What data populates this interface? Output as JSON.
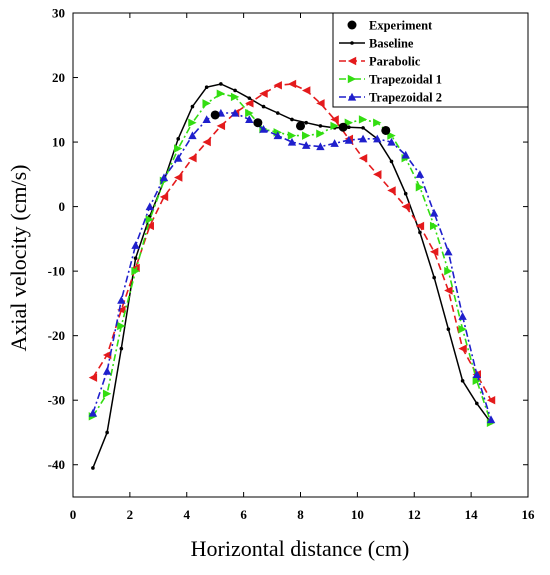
{
  "chart_data": {
    "type": "line",
    "title": "",
    "xlabel": "Horizontal distance (cm)",
    "ylabel": "Axial velocity (cm/s)",
    "xlim": [
      0,
      16
    ],
    "ylim": [
      -45,
      30
    ],
    "xticks": [
      0,
      2,
      4,
      6,
      8,
      10,
      12,
      14,
      16
    ],
    "yticks": [
      -40,
      -30,
      -20,
      -10,
      0,
      10,
      20,
      30
    ],
    "grid": false,
    "legend_position": "top-right",
    "series": [
      {
        "name": "Experiment",
        "color": "#000000",
        "style": "points",
        "marker": "circle",
        "x": [
          5.0,
          6.5,
          8.0,
          9.5,
          11.0
        ],
        "y": [
          14.2,
          13.0,
          12.5,
          12.3,
          11.8
        ]
      },
      {
        "name": "Baseline",
        "color": "#000000",
        "style": "solid",
        "marker": "dot",
        "x": [
          0.7,
          1.2,
          1.7,
          2.2,
          2.7,
          3.2,
          3.7,
          4.2,
          4.7,
          5.2,
          5.7,
          6.2,
          6.7,
          7.2,
          7.7,
          8.2,
          8.7,
          9.2,
          9.7,
          10.2,
          10.7,
          11.2,
          11.7,
          12.2,
          12.7,
          13.2,
          13.7,
          14.2,
          14.7
        ],
        "y": [
          -40.5,
          -35.0,
          -22.0,
          -8.0,
          -1.5,
          4.0,
          10.5,
          15.5,
          18.5,
          19.0,
          18.0,
          16.8,
          15.5,
          14.5,
          13.5,
          13.0,
          12.5,
          12.2,
          12.3,
          12.2,
          10.5,
          7.0,
          2.0,
          -4.0,
          -11.0,
          -19.0,
          -27.0,
          -30.5,
          -33.5
        ]
      },
      {
        "name": "Parabolic",
        "color": "#e41a1c",
        "style": "dashed",
        "marker": "triangle-left",
        "x": [
          0.7,
          1.2,
          1.7,
          2.2,
          2.7,
          3.2,
          3.7,
          4.2,
          4.7,
          5.2,
          5.7,
          6.2,
          6.7,
          7.2,
          7.7,
          8.2,
          8.7,
          9.2,
          9.7,
          10.2,
          10.7,
          11.2,
          11.7,
          12.2,
          12.7,
          13.2,
          13.7,
          14.2,
          14.7
        ],
        "y": [
          -26.5,
          -23.0,
          -16.0,
          -9.5,
          -3.0,
          1.5,
          4.5,
          7.5,
          10.0,
          12.5,
          14.5,
          16.0,
          17.5,
          18.8,
          19.0,
          18.0,
          16.0,
          13.5,
          10.5,
          7.5,
          5.0,
          2.5,
          0.0,
          -3.0,
          -7.0,
          -13.0,
          -22.0,
          -26.0,
          -30.0
        ]
      },
      {
        "name": "Trapezoidal 1",
        "color": "#33dd11",
        "style": "dash-dot",
        "marker": "triangle-right",
        "x": [
          0.7,
          1.2,
          1.7,
          2.2,
          2.7,
          3.2,
          3.7,
          4.2,
          4.7,
          5.2,
          5.7,
          6.2,
          6.7,
          7.2,
          7.7,
          8.2,
          8.7,
          9.2,
          9.7,
          10.2,
          10.7,
          11.2,
          11.7,
          12.2,
          12.7,
          13.2,
          13.7,
          14.2,
          14.7
        ],
        "y": [
          -32.5,
          -29.0,
          -18.5,
          -10.0,
          -2.0,
          4.0,
          9.0,
          13.0,
          16.0,
          17.5,
          17.0,
          14.5,
          12.0,
          11.5,
          11.0,
          11.0,
          11.3,
          12.5,
          13.0,
          13.5,
          13.0,
          11.0,
          7.5,
          3.0,
          -3.0,
          -10.0,
          -19.0,
          -27.0,
          -33.5
        ]
      },
      {
        "name": "Trapezoidal 2",
        "color": "#1f1fcc",
        "style": "dash-dot",
        "marker": "triangle-up",
        "x": [
          0.7,
          1.2,
          1.7,
          2.2,
          2.7,
          3.2,
          3.7,
          4.2,
          4.7,
          5.2,
          5.7,
          6.2,
          6.7,
          7.2,
          7.7,
          8.2,
          8.7,
          9.2,
          9.7,
          10.2,
          10.7,
          11.2,
          11.7,
          12.2,
          12.7,
          13.2,
          13.7,
          14.2,
          14.7
        ],
        "y": [
          -32.0,
          -25.5,
          -14.5,
          -6.0,
          0.0,
          4.5,
          7.5,
          11.0,
          13.5,
          14.5,
          14.5,
          13.5,
          12.0,
          11.0,
          10.0,
          9.5,
          9.3,
          9.8,
          10.3,
          10.5,
          10.5,
          10.0,
          8.0,
          5.0,
          -1.0,
          -7.0,
          -17.0,
          -26.0,
          -33.0
        ]
      }
    ]
  }
}
